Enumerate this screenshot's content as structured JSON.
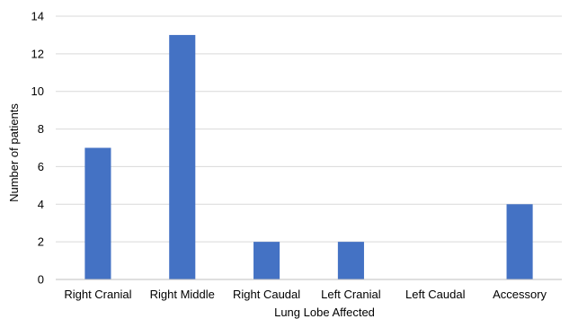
{
  "chart_data": {
    "type": "bar",
    "title": "",
    "xlabel": "Lung Lobe Affected",
    "ylabel": "Number of patients",
    "categories": [
      "Right Cranial",
      "Right Middle",
      "Right Caudal",
      "Left Cranial",
      "Left Caudal",
      "Accessory"
    ],
    "values": [
      7,
      13,
      2,
      2,
      0,
      4
    ],
    "ylim": [
      0,
      14
    ],
    "yticks": [
      "0",
      "2",
      "4",
      "6",
      "8",
      "10",
      "12",
      "14"
    ],
    "grid": true,
    "legend": "none",
    "colors": {
      "bar": "#4472C4",
      "grid": "#D9D9D9",
      "axis": "#BFBFBF"
    }
  }
}
